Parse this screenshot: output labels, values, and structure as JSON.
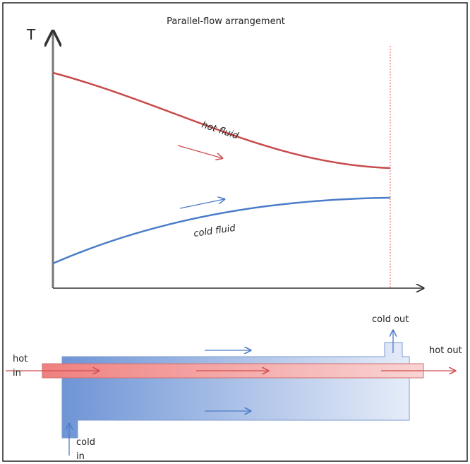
{
  "title": "Parallel-flow arrangement",
  "axis_label": "T",
  "curve_labels": {
    "hot": "hot fluid",
    "cold": "cold fluid"
  },
  "ports": {
    "cold_out": "cold out",
    "hot_in": [
      "hot",
      "in"
    ],
    "hot_out": "hot out",
    "cold_in": [
      "cold",
      "in"
    ]
  }
}
